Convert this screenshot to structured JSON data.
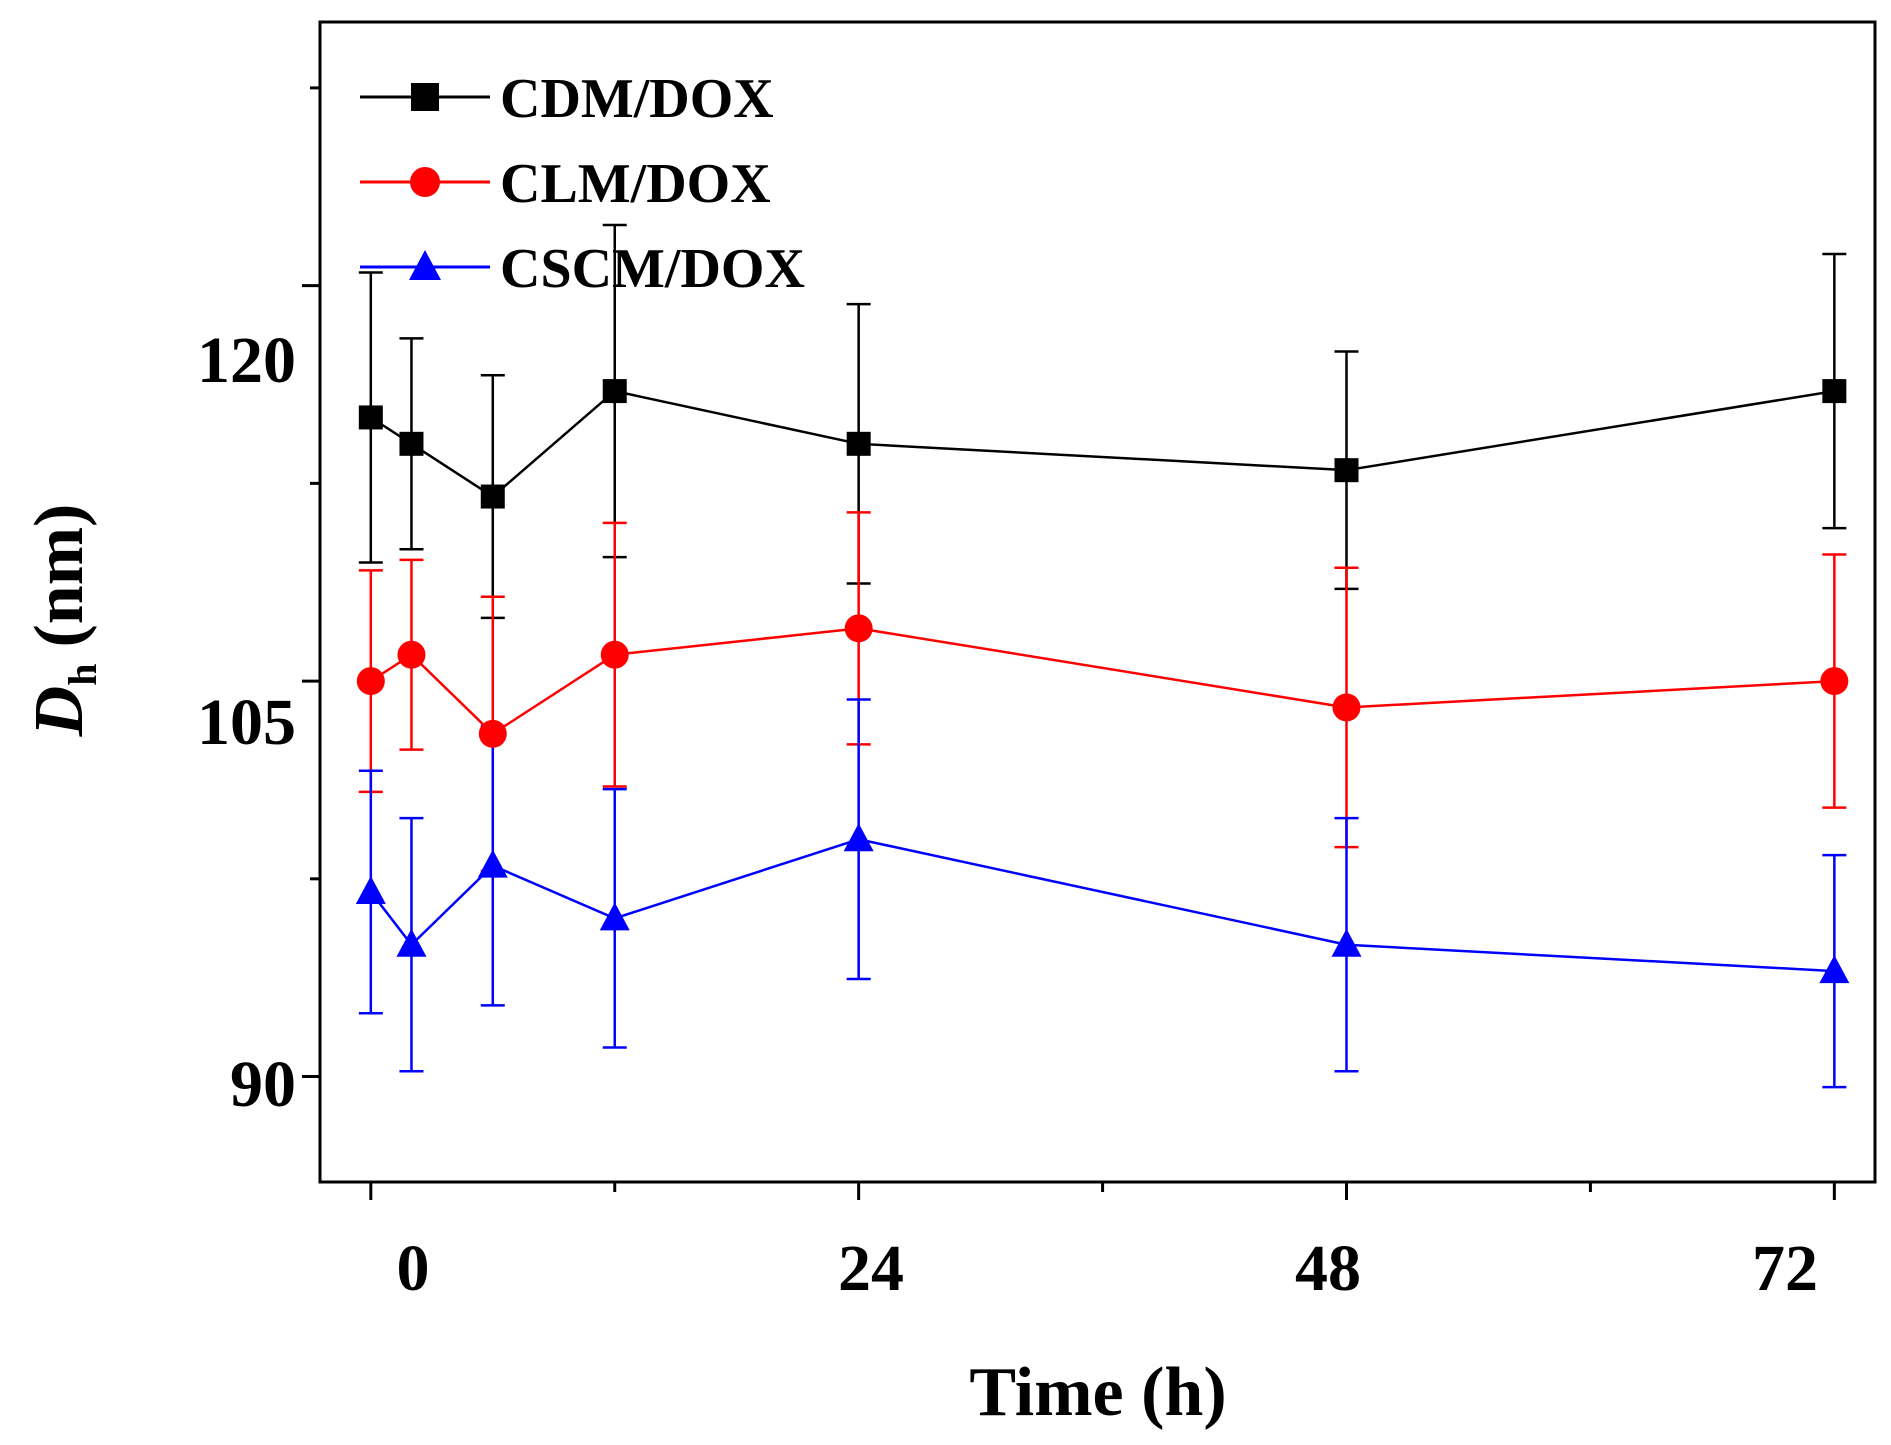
{
  "chart_data": {
    "type": "line",
    "title": "",
    "xlabel": "Time (h)",
    "ylabel_main": "D",
    "ylabel_sub": "h",
    "ylabel_unit": "(nm)",
    "xlim": [
      -2.5,
      74
    ],
    "ylim": [
      86,
      130
    ],
    "xticks": [
      0,
      24,
      48,
      72
    ],
    "xtick_labels": [
      "0",
      "24",
      "48",
      "72"
    ],
    "xminor_ticks": [
      12,
      36,
      60
    ],
    "yticks": [
      90,
      105,
      120
    ],
    "ytick_labels": [
      "90",
      "105",
      "120"
    ],
    "yminor_ticks": [
      97.5,
      112.5,
      127.5
    ],
    "legend_position": "top-left",
    "x": [
      0,
      2,
      6,
      12,
      24,
      48,
      72
    ],
    "series": [
      {
        "name": "CDM/DOX",
        "color": "#000000",
        "marker": "square",
        "values": [
          115,
          114,
          112,
          116,
          114,
          113,
          116
        ],
        "errors": [
          5.5,
          4,
          4.6,
          6.3,
          5.3,
          4.5,
          5.2
        ]
      },
      {
        "name": "CLM/DOX",
        "color": "#ff0000",
        "marker": "circle",
        "values": [
          105,
          106,
          103,
          106,
          107,
          104,
          105
        ],
        "errors": [
          4.2,
          3.6,
          5.2,
          5,
          4.4,
          5.3,
          4.8
        ]
      },
      {
        "name": "CSCM/DOX",
        "color": "#0000ff",
        "marker": "triangle",
        "values": [
          97,
          95,
          98,
          96,
          99,
          95,
          94
        ],
        "errors": [
          4.6,
          4.8,
          5.3,
          4.9,
          5.3,
          4.8,
          4.4
        ]
      }
    ]
  }
}
